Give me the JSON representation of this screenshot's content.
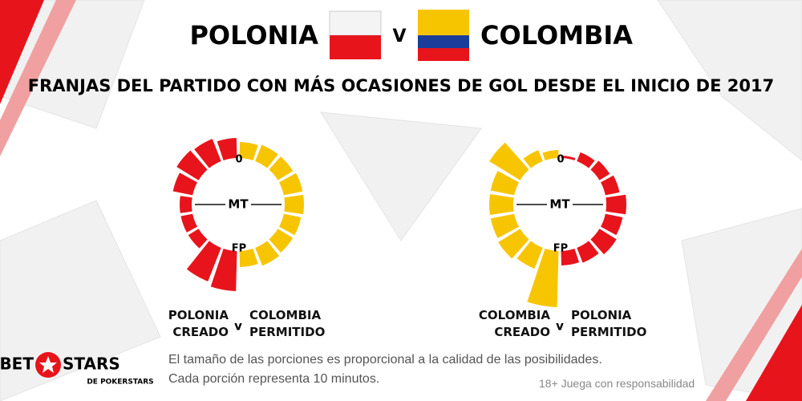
{
  "header": {
    "team1": "POLONIA",
    "versus": "V",
    "team2": "COLOMBIA",
    "subtitle": "FRANJAS DEL PARTIDO CON MÁS OCASIONES DE GOL DESDE EL INICIO DE 2017"
  },
  "chart_data": [
    {
      "type": "radial-bar",
      "labels": {
        "start": "0",
        "half": "MT",
        "end": "FP"
      },
      "versus": "v",
      "series": [
        {
          "name": "POLONIA CREADO",
          "color": "#e8141c",
          "side": "left",
          "values": [
            25,
            30,
            32,
            25,
            15,
            15,
            15,
            45,
            50
          ]
        },
        {
          "name": "COLOMBIA PERMITIDO",
          "color": "#f7c500",
          "side": "right",
          "values": [
            20,
            22,
            22,
            24,
            24,
            22,
            22,
            24,
            20
          ]
        }
      ]
    },
    {
      "type": "radial-bar",
      "labels": {
        "start": "0",
        "half": "MT",
        "end": "FP"
      },
      "versus": "v",
      "series": [
        {
          "name": "COLOMBIA CREADO",
          "color": "#f7c500",
          "side": "left",
          "values": [
            10,
            15,
            45,
            30,
            30,
            30,
            32,
            28,
            70
          ]
        },
        {
          "name": "POLONIA PERMITIDO",
          "color": "#e8141c",
          "side": "right",
          "values": [
            3,
            12,
            15,
            18,
            25,
            22,
            25,
            20,
            18
          ]
        }
      ]
    }
  ],
  "footer": {
    "note1": "El tamaño de las porciones es proporcional a la calidad de las posibilidades.",
    "note2": "Cada porción representa 10 minutos.",
    "brand_left": "BET",
    "brand_right": "STARS",
    "brand_sub": "DE POKERSTARS",
    "disclaimer": "18+ Juega con responsabilidad"
  }
}
